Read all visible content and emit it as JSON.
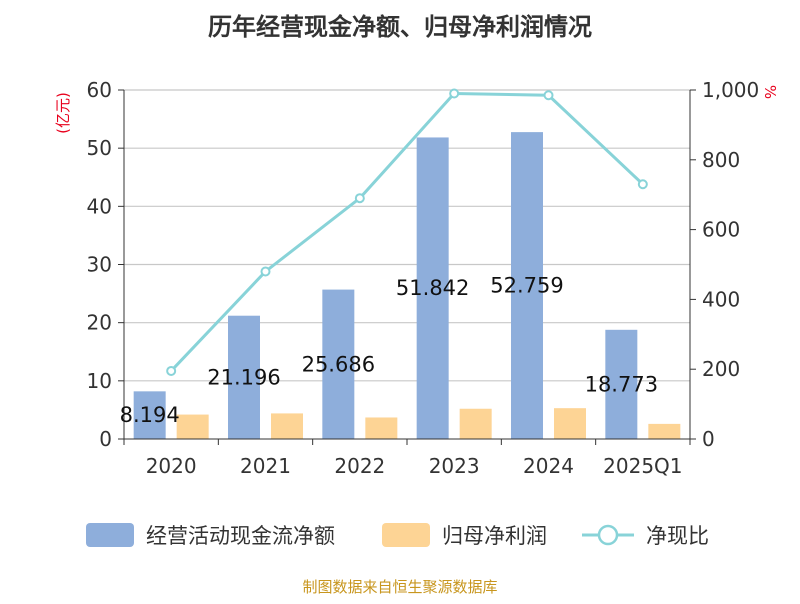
{
  "chart_data": {
    "type": "bar",
    "title": "历年经营现金净额、归母净利润情况",
    "categories": [
      "2020",
      "2021",
      "2022",
      "2023",
      "2024",
      "2025Q1"
    ],
    "y_left": {
      "label": "(亿元)",
      "ylim": [
        0,
        60
      ],
      "ticks": [
        "0",
        "10",
        "20",
        "30",
        "40",
        "50",
        "60"
      ]
    },
    "y_right": {
      "label": "%",
      "ylim": [
        0,
        1000
      ],
      "ticks": [
        "0",
        "200",
        "400",
        "600",
        "800",
        "1,000"
      ]
    },
    "series": [
      {
        "name": "经营活动现金流净额",
        "kind": "bar",
        "axis": "left",
        "color": "#8eaedb",
        "values": [
          8.194,
          21.196,
          25.686,
          51.842,
          52.759,
          18.773
        ],
        "labels": [
          "8.194",
          "21.196",
          "25.686",
          "51.842",
          "52.759",
          "18.773"
        ]
      },
      {
        "name": "归母净利润",
        "kind": "bar",
        "axis": "left",
        "color": "#fdd495",
        "values": [
          4.2,
          4.4,
          3.7,
          5.2,
          5.3,
          2.6
        ]
      },
      {
        "name": "净现比",
        "kind": "line",
        "axis": "right",
        "color": "#88d3d8",
        "values": [
          195,
          480,
          690,
          990,
          985,
          730
        ]
      }
    ],
    "grid": true,
    "legend_position": "bottom"
  },
  "footer": {
    "source": "制图数据来自恒生聚源数据库"
  }
}
